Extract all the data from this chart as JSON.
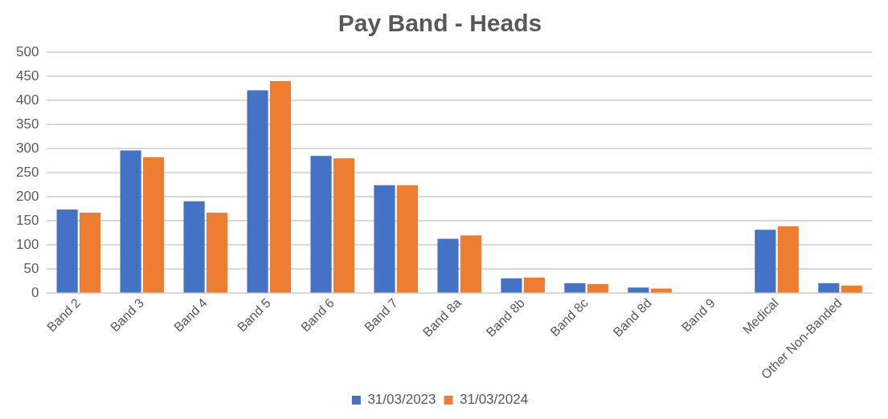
{
  "chart_data": {
    "type": "bar",
    "title": "Pay Band - Heads",
    "categories": [
      "Band 2",
      "Band 3",
      "Band 4",
      "Band 5",
      "Band 6",
      "Band 7",
      "Band 8a",
      "Band 8b",
      "Band 8c",
      "Band 8d",
      "Band 9",
      "Medical",
      "Other Non-Banded"
    ],
    "series": [
      {
        "name": "31/03/2023",
        "color": "#4472c4",
        "values": [
          174,
          296,
          191,
          421,
          285,
          224,
          113,
          31,
          21,
          12,
          0,
          132,
          21
        ]
      },
      {
        "name": "31/03/2024",
        "color": "#ed7d31",
        "values": [
          167,
          282,
          167,
          440,
          280,
          224,
          120,
          33,
          19,
          10,
          0,
          139,
          16
        ]
      }
    ],
    "ylim": [
      0,
      500
    ],
    "yticks": [
      0,
      50,
      100,
      150,
      200,
      250,
      300,
      350,
      400,
      450,
      500
    ],
    "grid": "y",
    "legend": "bottom"
  }
}
